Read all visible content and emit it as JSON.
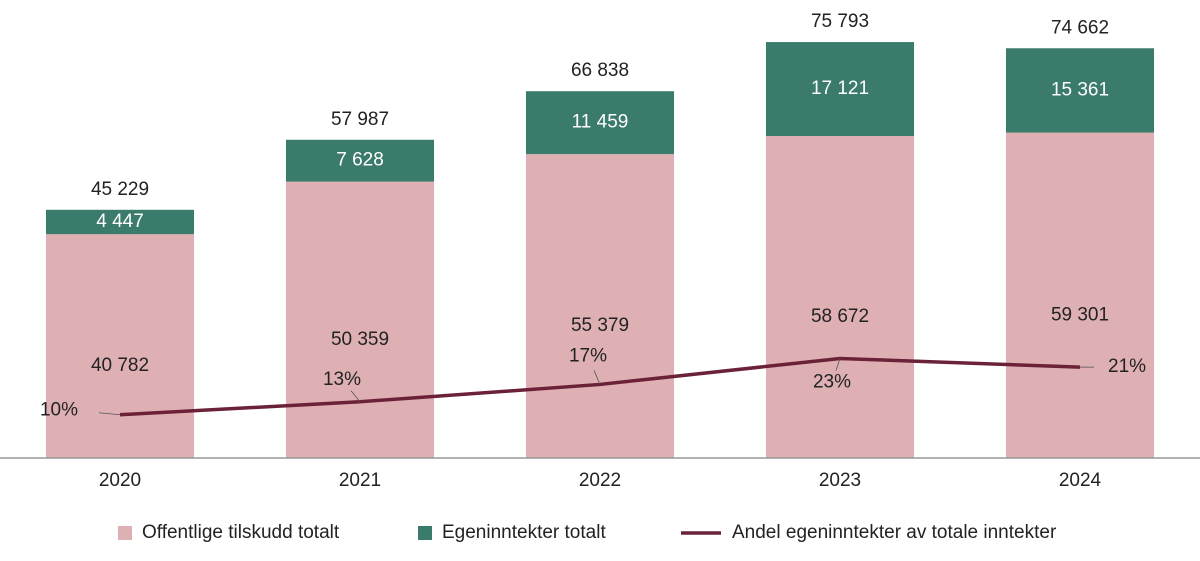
{
  "chart_data": {
    "type": "bar",
    "stacked": true,
    "categories": [
      "2020",
      "2021",
      "2022",
      "2023",
      "2024"
    ],
    "series": [
      {
        "name": "Offentlige tilskudd totalt",
        "color": "#dfb0b3",
        "values": [
          40782,
          50359,
          55379,
          58672,
          59301
        ],
        "value_labels": [
          "40 782",
          "50 359",
          "55 379",
          "58 672",
          "59 301"
        ]
      },
      {
        "name": "Egeninntekter totalt",
        "color": "#3a7b6c",
        "values": [
          4447,
          7628,
          11459,
          17121,
          15361
        ],
        "value_labels": [
          "4 447",
          "7 628",
          "11 459",
          "17 121",
          "15 361"
        ]
      },
      {
        "name": "Andel egeninntekter av totale inntekter",
        "type": "line",
        "axis": "y2",
        "color": "#6b2238",
        "values": [
          10,
          13,
          17,
          23,
          21
        ],
        "value_labels": [
          "10%",
          "13%",
          "17%",
          "23%",
          "21%"
        ]
      }
    ],
    "totals": [
      45229,
      57987,
      66838,
      75793,
      74662
    ],
    "total_labels": [
      "45 229",
      "57 987",
      "66 838",
      "75 793",
      "74 662"
    ],
    "ylim": [
      0,
      82000
    ],
    "y2lim": [
      0,
      104
    ],
    "legend": "bottom"
  }
}
